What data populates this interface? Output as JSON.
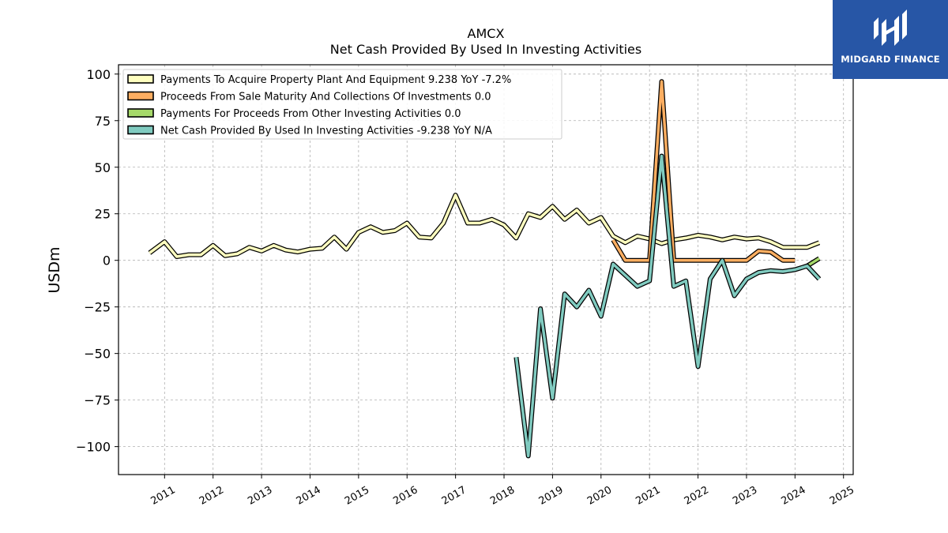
{
  "brand": {
    "name": "MIDGARD FINANCE",
    "color": "#2756a6",
    "icon": "midgard-m-logo-icon"
  },
  "chart_data": {
    "type": "line",
    "title": "AMCX",
    "subtitle": "Net Cash Provided By Used In Investing Activities",
    "ylabel": "USDm",
    "xlabel": "",
    "xlim": [
      2010.05,
      2025.2
    ],
    "ylim": [
      -115,
      105
    ],
    "yticks": [
      100,
      75,
      50,
      25,
      0,
      -25,
      -50,
      -75,
      -100
    ],
    "ytick_labels": [
      "100",
      "75",
      "50",
      "25",
      "0",
      "−25",
      "−50",
      "−75",
      "−100"
    ],
    "xticks": [
      2011,
      2012,
      2013,
      2014,
      2015,
      2016,
      2017,
      2018,
      2019,
      2020,
      2021,
      2022,
      2023,
      2024,
      2025
    ],
    "xtick_labels": [
      "2011",
      "2012",
      "2013",
      "2014",
      "2015",
      "2016",
      "2017",
      "2018",
      "2019",
      "2020",
      "2021",
      "2022",
      "2023",
      "2024",
      "2025"
    ],
    "grid": true,
    "legend_position": "top-left",
    "series": [
      {
        "name": "Payments To Acquire Property Plant And Equipment",
        "legend_label": "Payments To Acquire Property Plant And Equipment  9.238 YoY -7.2%",
        "color": "#ffffbf",
        "x": [
          2010.69,
          2011.0,
          2011.25,
          2011.5,
          2011.75,
          2012.0,
          2012.25,
          2012.5,
          2012.75,
          2013.0,
          2013.25,
          2013.5,
          2013.75,
          2014.0,
          2014.25,
          2014.5,
          2014.75,
          2015.0,
          2015.25,
          2015.5,
          2015.75,
          2016.0,
          2016.25,
          2016.5,
          2016.75,
          2017.0,
          2017.25,
          2017.5,
          2017.75,
          2018.0,
          2018.25,
          2018.5,
          2018.75,
          2019.0,
          2019.25,
          2019.5,
          2019.75,
          2020.0,
          2020.25,
          2020.5,
          2020.75,
          2021.0,
          2021.25,
          2021.5,
          2021.75,
          2022.0,
          2022.25,
          2022.5,
          2022.75,
          2023.0,
          2023.25,
          2023.5,
          2023.75,
          2024.0,
          2024.25,
          2024.5
        ],
        "values": [
          4,
          10,
          2,
          3,
          3,
          8,
          2.5,
          3.5,
          7,
          5,
          8,
          5.5,
          4.5,
          6,
          6.5,
          12.5,
          6,
          15,
          18,
          15,
          16,
          20,
          12.5,
          12,
          20,
          35,
          20,
          20,
          22,
          19,
          12,
          25,
          23,
          29,
          22,
          27,
          20,
          23,
          13,
          9.5,
          13,
          11.5,
          9,
          11,
          12,
          13.5,
          12.5,
          11,
          12.5,
          11.5,
          12,
          10,
          7,
          7,
          7,
          9.5
        ]
      },
      {
        "name": "Proceeds From Sale Maturity And Collections Of Investments",
        "legend_label": "Proceeds From Sale Maturity And Collections Of Investments  0.0",
        "color": "#fdae61",
        "x": [
          2020.25,
          2020.5,
          2020.75,
          2021.0,
          2021.25,
          2021.5,
          2021.75,
          2022.0,
          2022.25,
          2022.5,
          2022.75,
          2023.0,
          2023.25,
          2023.5,
          2023.75,
          2024.0
        ],
        "values": [
          11,
          0,
          0,
          0,
          96,
          0,
          0,
          0,
          0,
          0,
          0,
          0,
          5,
          4.5,
          0,
          0
        ]
      },
      {
        "name": "Payments For Proceeds From Other Investing Activities",
        "legend_label": "Payments For Proceeds From Other Investing Activities  0.0",
        "color": "#a6d96a",
        "x": [
          2024.25,
          2024.5
        ],
        "values": [
          -3,
          1
        ]
      },
      {
        "name": "Net Cash Provided By Used In Investing Activities",
        "legend_label": "Net Cash Provided By Used In Investing Activities  -9.238 YoY N/A",
        "color": "#80cbc0",
        "x": [
          2018.25,
          2018.5,
          2018.75,
          2019.0,
          2019.25,
          2019.5,
          2019.75,
          2020.0,
          2020.25,
          2020.5,
          2020.75,
          2021.0,
          2021.25,
          2021.5,
          2021.75,
          2022.0,
          2022.25,
          2022.5,
          2022.75,
          2023.0,
          2023.25,
          2023.5,
          2023.75,
          2024.0,
          2024.25,
          2024.5
        ],
        "values": [
          -52,
          -105,
          -26,
          -74,
          -18,
          -25,
          -16,
          -30,
          -2,
          -8,
          -14,
          -11,
          56,
          -14,
          -11,
          -57,
          -10,
          0,
          -19,
          -10,
          -6.5,
          -5.5,
          -6,
          -5,
          -3,
          -10
        ]
      }
    ]
  }
}
